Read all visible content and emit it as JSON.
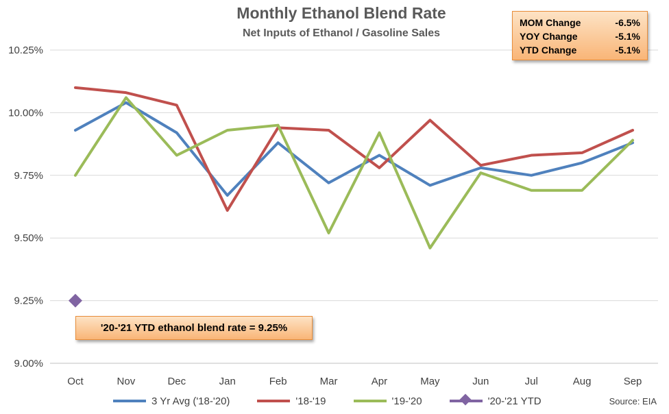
{
  "chart_data": {
    "type": "line",
    "title": "Monthly Ethanol Blend Rate",
    "subtitle": "Net Inputs of Ethanol / Gasoline Sales",
    "categories": [
      "Oct",
      "Nov",
      "Dec",
      "Jan",
      "Feb",
      "Mar",
      "Apr",
      "May",
      "Jun",
      "Jul",
      "Aug",
      "Sep"
    ],
    "ylim": [
      9.0,
      10.25
    ],
    "yticks": [
      "9.00%",
      "9.25%",
      "9.50%",
      "9.75%",
      "10.00%",
      "10.25%"
    ],
    "ytick_values": [
      9.0,
      9.25,
      9.5,
      9.75,
      10.0,
      10.25
    ],
    "grid": true,
    "legend_position": "bottom",
    "series": [
      {
        "name": "3 Yr Avg ('18-'20)",
        "color": "#4f81bd",
        "values": [
          9.93,
          10.04,
          9.92,
          9.67,
          9.88,
          9.72,
          9.83,
          9.71,
          9.78,
          9.75,
          9.8,
          9.88
        ]
      },
      {
        "name": "'18-'19",
        "color": "#c0504d",
        "values": [
          10.1,
          10.08,
          10.03,
          9.61,
          9.94,
          9.93,
          9.78,
          9.97,
          9.79,
          9.83,
          9.84,
          9.93
        ]
      },
      {
        "name": "'19-'20",
        "color": "#9bbb59",
        "values": [
          9.75,
          10.06,
          9.83,
          9.93,
          9.95,
          9.52,
          9.92,
          9.46,
          9.76,
          9.69,
          9.69,
          9.89
        ]
      },
      {
        "name": "'20-'21 YTD",
        "color": "#8064a2",
        "marker": "diamond",
        "values": [
          9.25,
          null,
          null,
          null,
          null,
          null,
          null,
          null,
          null,
          null,
          null,
          null
        ]
      }
    ],
    "stats": [
      {
        "label": "MOM Change",
        "value": "-6.5%"
      },
      {
        "label": "YOY Change",
        "value": "-5.1%"
      },
      {
        "label": "YTD Change",
        "value": "-5.1%"
      }
    ],
    "annotation": "'20-'21 YTD ethanol blend rate = 9.25%",
    "source": "Source: EIA"
  }
}
